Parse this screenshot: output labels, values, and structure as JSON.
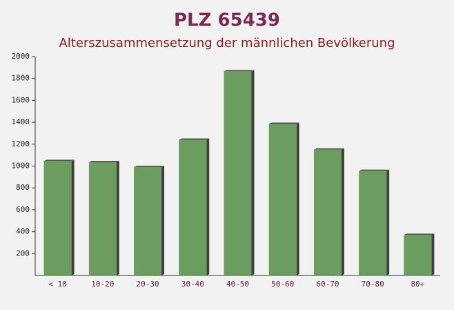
{
  "chart_data": {
    "type": "bar",
    "title": "PLZ 65439",
    "subtitle": "Alterszusammensetzung der männlichen Bevölkerung",
    "categories": [
      "< 10",
      "10-20",
      "20-30",
      "30-40",
      "40-50",
      "50-60",
      "60-70",
      "70-80",
      "80+"
    ],
    "values": [
      1045,
      1035,
      990,
      1240,
      1865,
      1385,
      1150,
      955,
      370
    ],
    "color": "#6b9e5e",
    "ylim": [
      0,
      2000
    ],
    "yticks": [
      200,
      400,
      600,
      800,
      1000,
      1200,
      1400,
      1600,
      1800,
      2000
    ]
  }
}
